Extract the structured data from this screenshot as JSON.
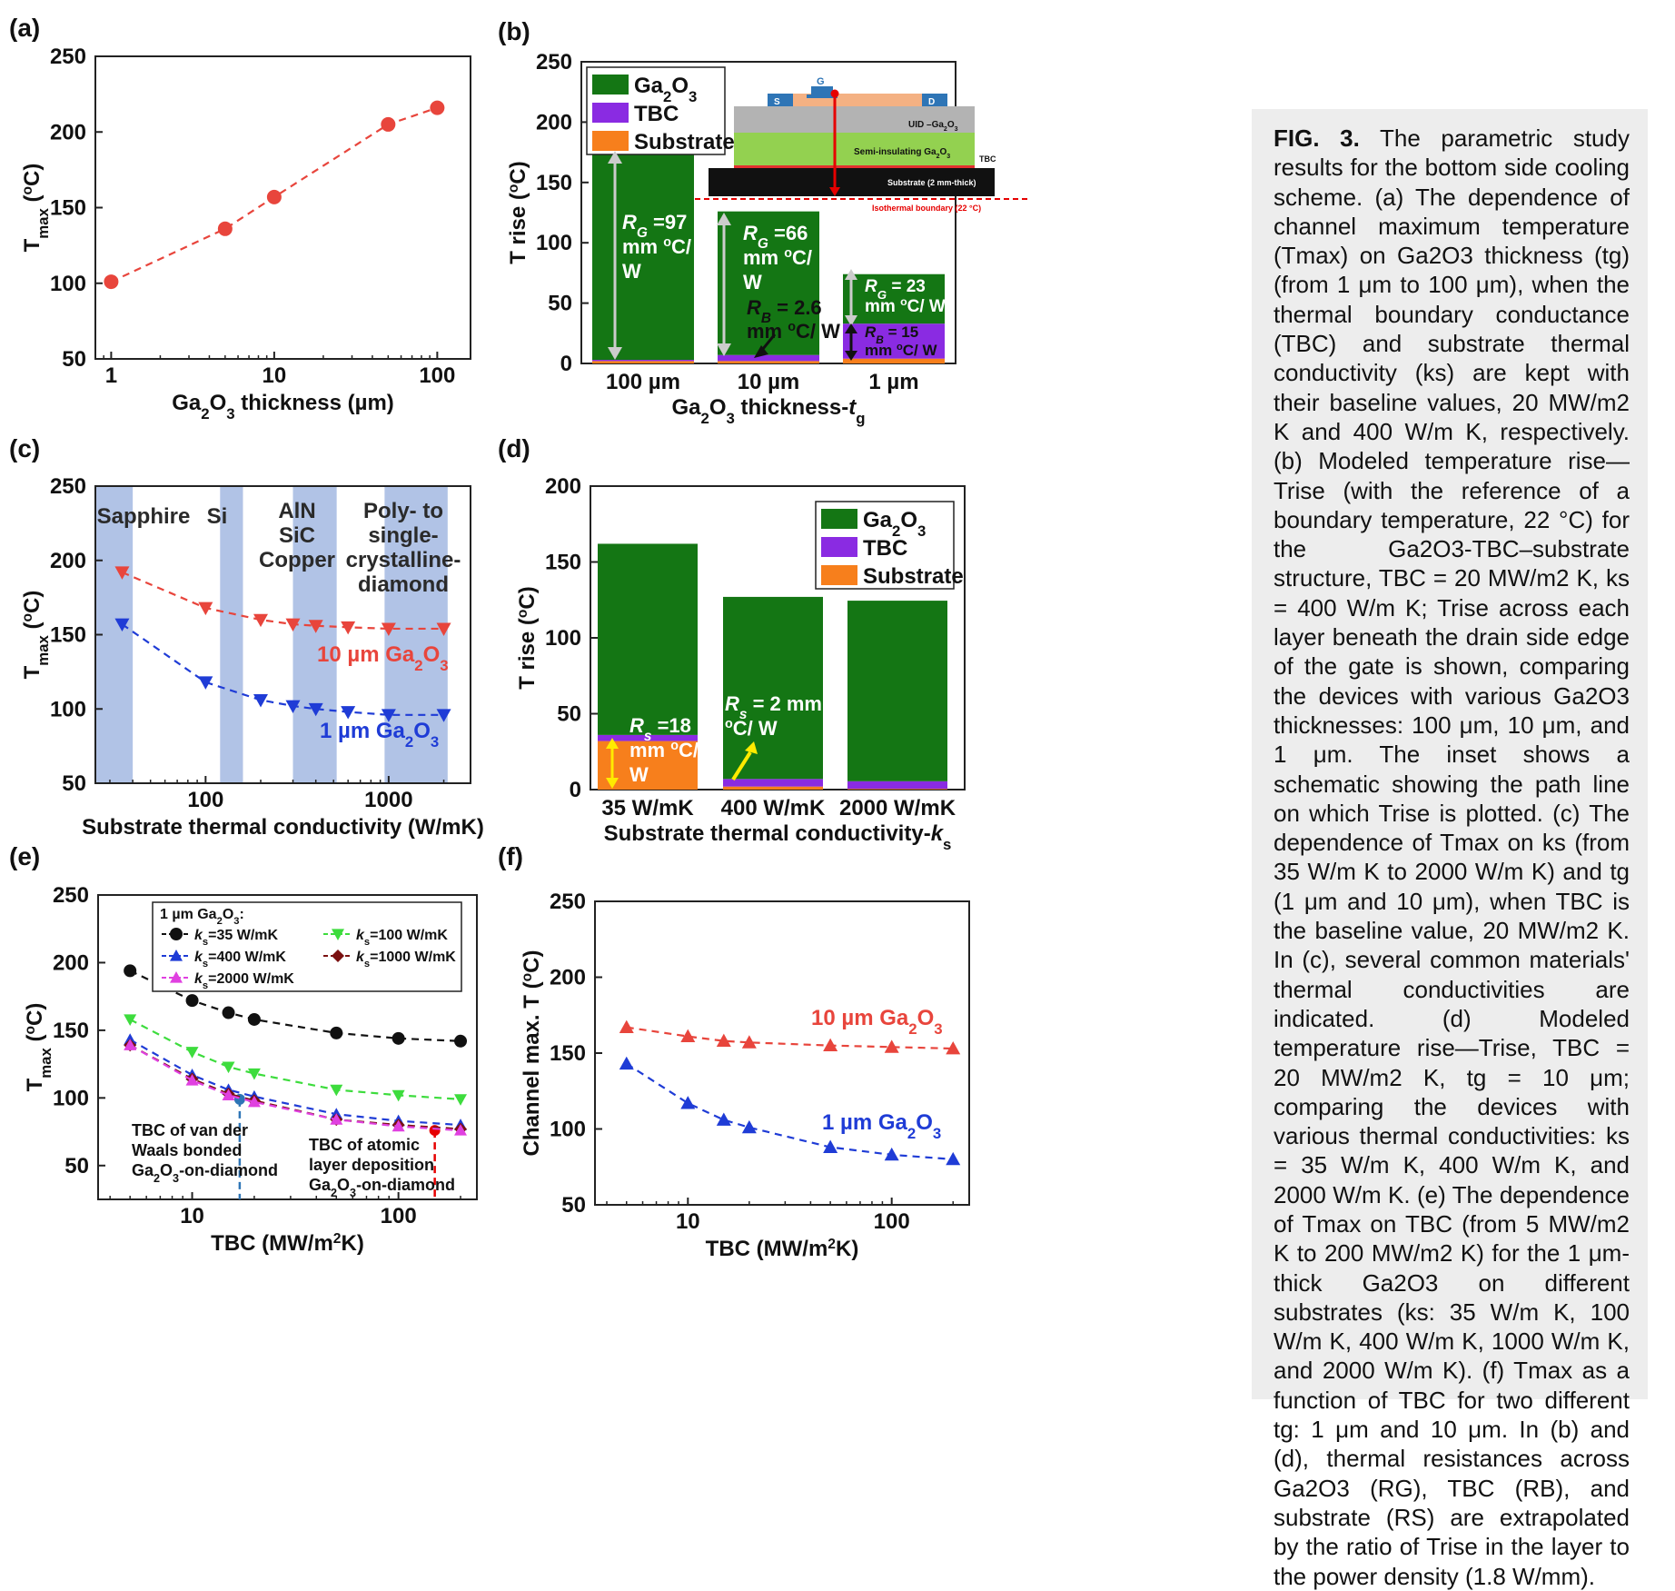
{
  "panels": [
    {
      "label": "(a)",
      "type": "line",
      "xlabel": "Ga2O3 thickness (µm)",
      "ylabel": "Tmax (°C)",
      "xscale": "log",
      "xlim": [
        0.8,
        160
      ],
      "ylim": [
        50,
        250
      ],
      "xticks": [
        1,
        10,
        100
      ],
      "yticks": [
        50,
        100,
        150,
        200,
        250
      ],
      "series": [
        {
          "name": "Tmax",
          "color": "#e8453c",
          "marker": "circle",
          "x": [
            1,
            5,
            10,
            50,
            100
          ],
          "y": [
            101,
            136,
            157,
            205,
            216
          ]
        }
      ]
    },
    {
      "label": "(b)",
      "type": "bar",
      "xlabel": "Ga2O3 thickness-tg",
      "ylabel": "T rise (°C)",
      "ylim": [
        0,
        250
      ],
      "yticks": [
        0,
        50,
        100,
        150,
        200,
        250
      ],
      "categories": [
        "100 µm",
        "10 µm",
        "1 µm"
      ],
      "series": [
        {
          "name": "Substrate",
          "color": "#f77f1c",
          "values": [
            2,
            2,
            4
          ]
        },
        {
          "name": "TBC",
          "color": "#8a2be2",
          "values": [
            1,
            5,
            29
          ]
        },
        {
          "name": "Ga2O3",
          "color": "#147614",
          "values": [
            172,
            119,
            41
          ]
        }
      ],
      "annotations": [
        "RG =97 mm °C/ W",
        "RG =66 mm °C/ W",
        "RB = 2.6 mm °C/ W",
        "RG = 23 mm °C/ W",
        "RB = 15 mm °C/ W"
      ],
      "inset": {
        "S": "S",
        "G": "G",
        "D": "D",
        "uid": "UID –Ga2O3",
        "semi": "Semi-insulating Ga2O3",
        "tbc": "TBC",
        "substrate": "Substrate (2 mm-thick)",
        "isothermal": "Isothermal boundary (22 °C)"
      }
    },
    {
      "label": "(c)",
      "type": "line",
      "xlabel": "Substrate thermal conductivity (W/mK)",
      "ylabel": "Tmax (°C)",
      "xscale": "log",
      "xlim": [
        25,
        2800
      ],
      "ylim": [
        50,
        250
      ],
      "xticks": [
        100,
        1000
      ],
      "yticks": [
        50,
        100,
        150,
        200,
        250
      ],
      "series": [
        {
          "name": "10 µm Ga2O3",
          "color": "#e8453c",
          "marker": "tri-down",
          "x": [
            35,
            100,
            200,
            300,
            400,
            600,
            1000,
            2000
          ],
          "y": [
            192,
            168,
            160,
            157,
            156,
            155,
            154,
            154
          ]
        },
        {
          "name": "1 µm Ga2O3",
          "color": "#1f3cd6",
          "marker": "tri-down",
          "x": [
            35,
            100,
            200,
            300,
            400,
            600,
            1000,
            2000
          ],
          "y": [
            157,
            118,
            106,
            102,
            100,
            98,
            96,
            96
          ]
        }
      ],
      "materials": [
        "Sapphire",
        "Si",
        "AlN SiC Copper",
        "Poly- to single- crystalline diamond"
      ]
    },
    {
      "label": "(d)",
      "type": "bar",
      "xlabel": "Substrate thermal conductivity-ks",
      "ylabel": "T rise (°C)",
      "ylim": [
        0,
        200
      ],
      "yticks": [
        0,
        50,
        100,
        150,
        200
      ],
      "categories": [
        "35 W/mK",
        "400 W/mK",
        "2000 W/mK"
      ],
      "series": [
        {
          "name": "Substrate",
          "color": "#f77f1c",
          "values": [
            32,
            2,
            0.5
          ]
        },
        {
          "name": "TBC",
          "color": "#8a2be2",
          "values": [
            4,
            5,
            5
          ]
        },
        {
          "name": "Ga2O3",
          "color": "#147614",
          "values": [
            126,
            120,
            119
          ]
        }
      ],
      "annotations": [
        "Rs =18 mm °C/ W",
        "Rs = 2 mm °C/ W"
      ]
    },
    {
      "label": "(e)",
      "type": "line",
      "xlabel": "TBC (MW/m²K)",
      "ylabel": "Tmax (°C)",
      "xscale": "log",
      "xlim": [
        3.5,
        240
      ],
      "ylim": [
        25,
        250
      ],
      "xticks": [
        10,
        100
      ],
      "yticks": [
        50,
        100,
        150,
        200,
        250
      ],
      "legend_title": "1 µm Ga2O3:",
      "series": [
        {
          "name": "ks=35 W/mK",
          "color": "#111111",
          "marker": "circle",
          "x": [
            5,
            10,
            15,
            20,
            50,
            100,
            200
          ],
          "y": [
            194,
            172,
            163,
            158,
            148,
            144,
            142
          ]
        },
        {
          "name": "ks=100 W/mK",
          "color": "#3ddc3d",
          "marker": "tri-down",
          "x": [
            5,
            10,
            15,
            20,
            50,
            100,
            200
          ],
          "y": [
            158,
            134,
            123,
            118,
            106,
            102,
            99
          ]
        },
        {
          "name": "ks=400 W/mK",
          "color": "#1f3cd6",
          "marker": "tri-up",
          "x": [
            5,
            10,
            15,
            20,
            50,
            100,
            200
          ],
          "y": [
            143,
            117,
            106,
            101,
            88,
            83,
            80
          ]
        },
        {
          "name": "ks=1000 W/mK",
          "color": "#7a1010",
          "marker": "diamond",
          "x": [
            5,
            10,
            15,
            20,
            50,
            100,
            200
          ],
          "y": [
            139,
            114,
            103,
            98,
            84,
            80,
            77
          ]
        },
        {
          "name": "ks=2000 W/mK",
          "color": "#e040e0",
          "marker": "tri-up",
          "x": [
            5,
            10,
            15,
            20,
            50,
            100,
            200
          ],
          "y": [
            139,
            113,
            102,
            97,
            84,
            79,
            76
          ]
        }
      ],
      "annotations": [
        "TBC of van der Waals bonded Ga2O3-on-diamond",
        "TBC of atomic layer deposition Ga2O3-on-diamond"
      ]
    },
    {
      "label": "(f)",
      "type": "line",
      "xlabel": "TBC (MW/m²K)",
      "ylabel": "Channel max. T (°C)",
      "xscale": "log",
      "xlim": [
        3.5,
        240
      ],
      "ylim": [
        50,
        250
      ],
      "xticks": [
        10,
        100
      ],
      "yticks": [
        50,
        100,
        150,
        200,
        250
      ],
      "series": [
        {
          "name": "10 µm Ga2O3",
          "color": "#e8453c",
          "marker": "tri-up",
          "x": [
            5,
            10,
            15,
            20,
            50,
            100,
            200
          ],
          "y": [
            167,
            161,
            158,
            157,
            155,
            154,
            153
          ]
        },
        {
          "name": "1 µm Ga2O3",
          "color": "#1f3cd6",
          "marker": "tri-up",
          "x": [
            5,
            10,
            15,
            20,
            50,
            100,
            200
          ],
          "y": [
            143,
            117,
            106,
            101,
            88,
            83,
            80
          ]
        }
      ]
    }
  ],
  "chart_data": [
    {
      "type": "line",
      "title": "(a)",
      "xlabel": "Ga2O3 thickness (µm)",
      "ylabel": "Tmax (°C)",
      "x": [
        1,
        5,
        10,
        50,
        100
      ],
      "y": [
        101,
        136,
        157,
        205,
        216
      ],
      "ylim": [
        50,
        250
      ]
    },
    {
      "type": "bar",
      "title": "(b)",
      "xlabel": "Ga2O3 thickness-tg",
      "ylabel": "T rise (°C)",
      "categories": [
        "100 µm",
        "10 µm",
        "1 µm"
      ],
      "series": [
        {
          "name": "Ga2O3",
          "values": [
            172,
            119,
            41
          ]
        },
        {
          "name": "TBC",
          "values": [
            1,
            5,
            29
          ]
        },
        {
          "name": "Substrate",
          "values": [
            2,
            2,
            4
          ]
        }
      ],
      "ylim": [
        0,
        250
      ]
    },
    {
      "type": "line",
      "title": "(c)",
      "xlabel": "Substrate thermal conductivity (W/mK)",
      "ylabel": "Tmax (°C)",
      "x": [
        35,
        100,
        200,
        300,
        400,
        600,
        1000,
        2000
      ],
      "series": [
        {
          "name": "10 µm Ga2O3",
          "values": [
            192,
            168,
            160,
            157,
            156,
            155,
            154,
            154
          ]
        },
        {
          "name": "1 µm Ga2O3",
          "values": [
            157,
            118,
            106,
            102,
            100,
            98,
            96,
            96
          ]
        }
      ],
      "ylim": [
        50,
        250
      ]
    },
    {
      "type": "bar",
      "title": "(d)",
      "xlabel": "Substrate thermal conductivity-ks",
      "ylabel": "T rise (°C)",
      "categories": [
        "35 W/mK",
        "400 W/mK",
        "2000 W/mK"
      ],
      "series": [
        {
          "name": "Ga2O3",
          "values": [
            126,
            120,
            119
          ]
        },
        {
          "name": "TBC",
          "values": [
            4,
            5,
            5
          ]
        },
        {
          "name": "Substrate",
          "values": [
            32,
            2,
            0.5
          ]
        }
      ],
      "ylim": [
        0,
        200
      ]
    },
    {
      "type": "line",
      "title": "(e)",
      "xlabel": "TBC (MW/m²K)",
      "ylabel": "Tmax (°C)",
      "x": [
        5,
        10,
        15,
        20,
        50,
        100,
        200
      ],
      "series": [
        {
          "name": "ks=35 W/mK",
          "values": [
            194,
            172,
            163,
            158,
            148,
            144,
            142
          ]
        },
        {
          "name": "ks=100 W/mK",
          "values": [
            158,
            134,
            123,
            118,
            106,
            102,
            99
          ]
        },
        {
          "name": "ks=400 W/mK",
          "values": [
            143,
            117,
            106,
            101,
            88,
            83,
            80
          ]
        },
        {
          "name": "ks=1000 W/mK",
          "values": [
            139,
            114,
            103,
            98,
            84,
            80,
            77
          ]
        },
        {
          "name": "ks=2000 W/mK",
          "values": [
            139,
            113,
            102,
            97,
            84,
            79,
            76
          ]
        }
      ],
      "ylim": [
        25,
        250
      ]
    },
    {
      "type": "line",
      "title": "(f)",
      "xlabel": "TBC (MW/m²K)",
      "ylabel": "Channel max. T (°C)",
      "x": [
        5,
        10,
        15,
        20,
        50,
        100,
        200
      ],
      "series": [
        {
          "name": "10 µm Ga2O3",
          "values": [
            167,
            161,
            158,
            157,
            155,
            154,
            153
          ]
        },
        {
          "name": "1 µm Ga2O3",
          "values": [
            143,
            117,
            106,
            101,
            88,
            83,
            80
          ]
        }
      ],
      "ylim": [
        50,
        250
      ]
    }
  ],
  "caption": {
    "label": "FIG. 3.",
    "text": "The parametric study results for the bottom side cooling scheme. (a) The dependence of channel maximum temperature (Tmax) on Ga2O3 thickness (tg) (from 1 μm to 100 μm), when the thermal boundary conductance (TBC) and substrate thermal conductivity (ks) are kept with their baseline values, 20 MW/m2 K and 400 W/m K, respectively. (b) Modeled temperature rise—Trise (with the reference of a boundary temperature, 22 °C) for the Ga2O3-TBC–substrate structure, TBC = 20 MW/m2 K, ks = 400 W/m K; Trise across each layer beneath the drain side edge of the gate is shown, comparing the devices with various Ga2O3 thicknesses: 100 μm, 10 μm, and 1 μm. The inset shows a schematic showing the path line on which Trise is plotted. (c) The dependence of Tmax on ks (from 35 W/m K to 2000 W/m K) and tg (1 μm and 10 μm), when TBC is the baseline value, 20 MW/m2 K. In (c), several common materials' thermal conductivities are indicated. (d) Modeled temperature rise—Trise, TBC = 20 MW/m2 K, tg = 10 μm; comparing the devices with various thermal conductivities: ks = 35 W/m K, 400 W/m K, and 2000 W/m K. (e) The dependence of Tmax on TBC (from 5 MW/m2 K to 200 MW/m2 K) for the 1 μm-thick Ga2O3 on different substrates (ks: 35 W/m K, 100 W/m K, 400 W/m K, 1000 W/m K, and 2000 W/m K). (f) Tmax as a function of TBC for two different tg: 1 μm and 10 μm. In (b) and (d), thermal resistances across Ga2O3 (RG), TBC (RB), and substrate (RS) are extrapolated by the ratio of Trise in the layer to the power density (1.8 W/mm)."
  }
}
